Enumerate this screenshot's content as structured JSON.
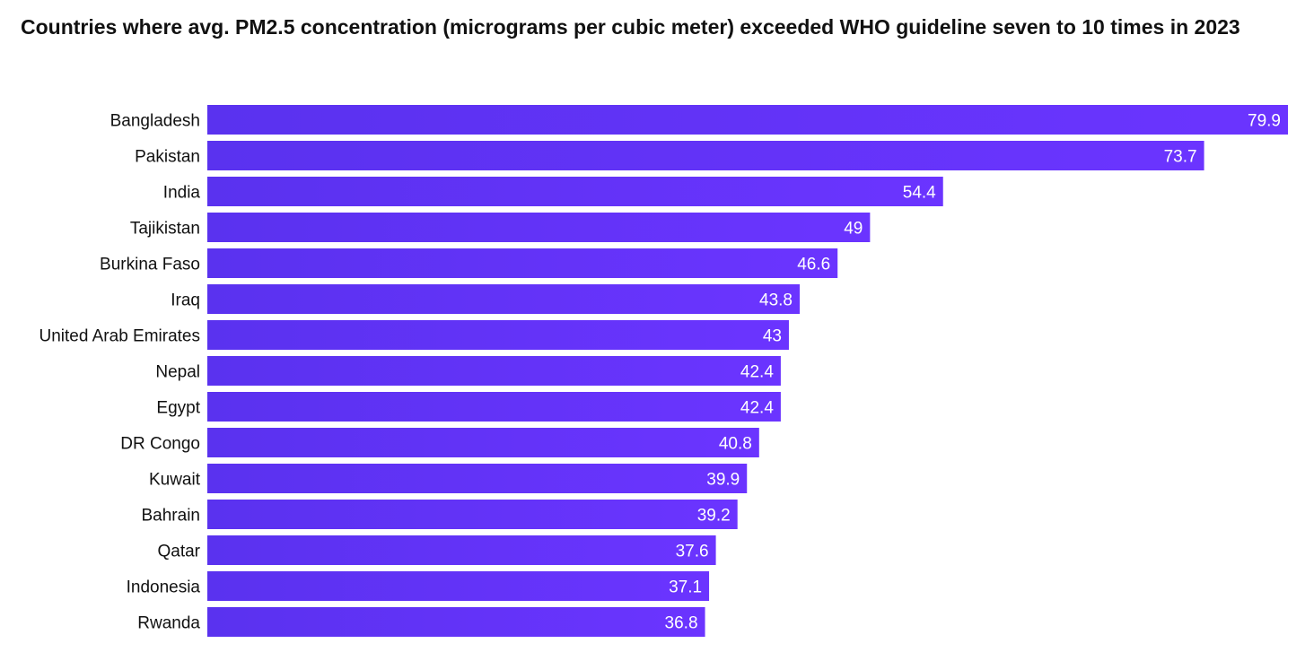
{
  "chart_data": {
    "type": "bar",
    "orientation": "horizontal",
    "title": "Countries where avg. PM2.5 concentration (micrograms per cubic meter) exceeded WHO guideline seven to 10 times in 2023",
    "categories": [
      "Bangladesh",
      "Pakistan",
      "India",
      "Tajikistan",
      "Burkina Faso",
      "Iraq",
      "United Arab Emirates",
      "Nepal",
      "Egypt",
      "DR Congo",
      "Kuwait",
      "Bahrain",
      "Qatar",
      "Indonesia",
      "Rwanda"
    ],
    "values": [
      79.9,
      73.7,
      54.4,
      49,
      46.6,
      43.8,
      43,
      42.4,
      42.4,
      40.8,
      39.9,
      39.2,
      37.6,
      37.1,
      36.8
    ],
    "value_labels": [
      "79.9",
      "73.7",
      "54.4",
      "49",
      "46.6",
      "43.8",
      "43",
      "42.4",
      "42.4",
      "40.8",
      "39.9",
      "39.2",
      "37.6",
      "37.1",
      "36.8"
    ],
    "xlim": [
      0,
      79.9
    ],
    "grid": false,
    "legend": "none",
    "colors": {
      "bar_start": "#5a32ef",
      "bar_end": "#6b34ff",
      "value_text": "#ffffff",
      "category_text": "#111111"
    }
  }
}
